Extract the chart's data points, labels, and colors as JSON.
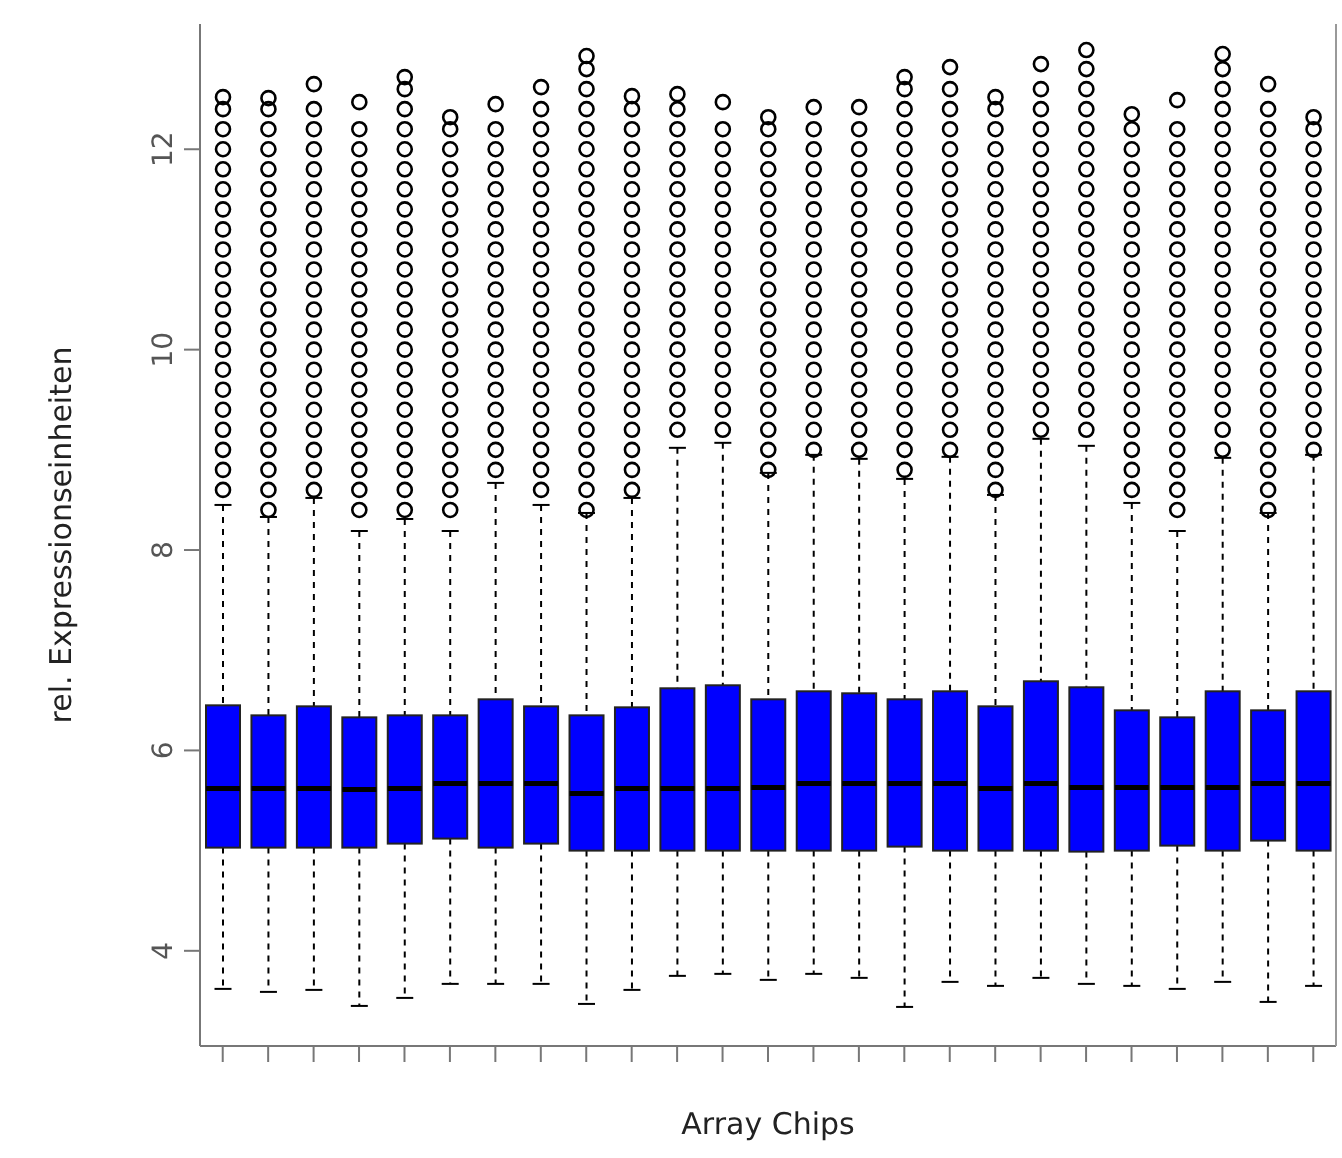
{
  "chart_data": {
    "type": "box",
    "xlabel": "Array Chips",
    "ylabel": "rel. Expressionseinheiten",
    "categories": [
      null,
      null,
      null,
      null,
      null,
      null,
      null,
      null,
      null,
      null,
      null,
      null,
      null,
      null,
      null,
      null,
      null,
      null,
      null,
      null,
      null,
      null,
      null,
      null,
      null
    ],
    "color": "#0000ff",
    "ylim": [
      3.05,
      13.25
    ],
    "yticks": [
      4,
      6,
      8,
      10,
      12
    ],
    "tick_labels": "y",
    "boxes": [
      {
        "low": 3.62,
        "q1": 5.03,
        "median": 5.62,
        "q3": 6.45,
        "high": 8.45,
        "outliers": [
          8.6,
          8.8,
          9,
          9.2,
          9.4,
          9.6,
          9.8,
          10,
          10.2,
          10.4,
          10.6,
          10.8,
          11,
          11.2,
          11.4,
          11.6,
          11.8,
          12,
          12.2,
          12.4,
          12.52
        ]
      },
      {
        "low": 3.59,
        "q1": 5.03,
        "median": 5.62,
        "q3": 6.35,
        "high": 8.33,
        "outliers": [
          8.4,
          8.6,
          8.8,
          9,
          9.2,
          9.4,
          9.6,
          9.8,
          10,
          10.2,
          10.4,
          10.6,
          10.8,
          11,
          11.2,
          11.4,
          11.6,
          11.8,
          12,
          12.2,
          12.4,
          12.51
        ]
      },
      {
        "low": 3.61,
        "q1": 5.03,
        "median": 5.62,
        "q3": 6.44,
        "high": 8.52,
        "outliers": [
          8.6,
          8.8,
          9,
          9.2,
          9.4,
          9.6,
          9.8,
          10,
          10.2,
          10.4,
          10.6,
          10.8,
          11,
          11.2,
          11.4,
          11.6,
          11.8,
          12,
          12.2,
          12.4,
          12.65
        ]
      },
      {
        "low": 3.45,
        "q1": 5.03,
        "median": 5.61,
        "q3": 6.33,
        "high": 8.19,
        "outliers": [
          8.4,
          8.6,
          8.8,
          9,
          9.2,
          9.4,
          9.6,
          9.8,
          10,
          10.2,
          10.4,
          10.6,
          10.8,
          11,
          11.2,
          11.4,
          11.6,
          11.8,
          12,
          12.2,
          12.47
        ]
      },
      {
        "low": 3.53,
        "q1": 5.07,
        "median": 5.62,
        "q3": 6.35,
        "high": 8.31,
        "outliers": [
          8.4,
          8.6,
          8.8,
          9,
          9.2,
          9.4,
          9.6,
          9.8,
          10,
          10.2,
          10.4,
          10.6,
          10.8,
          11,
          11.2,
          11.4,
          11.6,
          11.8,
          12,
          12.2,
          12.4,
          12.6,
          12.72
        ]
      },
      {
        "low": 3.67,
        "q1": 5.12,
        "median": 5.67,
        "q3": 6.35,
        "high": 8.19,
        "outliers": [
          8.4,
          8.6,
          8.8,
          9,
          9.2,
          9.4,
          9.6,
          9.8,
          10,
          10.2,
          10.4,
          10.6,
          10.8,
          11,
          11.2,
          11.4,
          11.6,
          11.8,
          12,
          12.2,
          12.32
        ]
      },
      {
        "low": 3.67,
        "q1": 5.03,
        "median": 5.67,
        "q3": 6.51,
        "high": 8.67,
        "outliers": [
          8.8,
          9,
          9.2,
          9.4,
          9.6,
          9.8,
          10,
          10.2,
          10.4,
          10.6,
          10.8,
          11,
          11.2,
          11.4,
          11.6,
          11.8,
          12,
          12.2,
          12.45
        ]
      },
      {
        "low": 3.67,
        "q1": 5.07,
        "median": 5.67,
        "q3": 6.44,
        "high": 8.45,
        "outliers": [
          8.6,
          8.8,
          9,
          9.2,
          9.4,
          9.6,
          9.8,
          10,
          10.2,
          10.4,
          10.6,
          10.8,
          11,
          11.2,
          11.4,
          11.6,
          11.8,
          12,
          12.2,
          12.4,
          12.62
        ]
      },
      {
        "low": 3.47,
        "q1": 5.0,
        "median": 5.57,
        "q3": 6.35,
        "high": 8.37,
        "outliers": [
          8.4,
          8.6,
          8.8,
          9,
          9.2,
          9.4,
          9.6,
          9.8,
          10,
          10.2,
          10.4,
          10.6,
          10.8,
          11,
          11.2,
          11.4,
          11.6,
          11.8,
          12,
          12.2,
          12.4,
          12.6,
          12.8,
          12.93
        ]
      },
      {
        "low": 3.61,
        "q1": 5.0,
        "median": 5.62,
        "q3": 6.43,
        "high": 8.52,
        "outliers": [
          8.6,
          8.8,
          9,
          9.2,
          9.4,
          9.6,
          9.8,
          10,
          10.2,
          10.4,
          10.6,
          10.8,
          11,
          11.2,
          11.4,
          11.6,
          11.8,
          12,
          12.2,
          12.4,
          12.53
        ]
      },
      {
        "low": 3.75,
        "q1": 5.0,
        "median": 5.62,
        "q3": 6.62,
        "high": 9.02,
        "outliers": [
          9.2,
          9.4,
          9.6,
          9.8,
          10,
          10.2,
          10.4,
          10.6,
          10.8,
          11,
          11.2,
          11.4,
          11.6,
          11.8,
          12,
          12.2,
          12.4,
          12.55
        ]
      },
      {
        "low": 3.77,
        "q1": 5.0,
        "median": 5.62,
        "q3": 6.65,
        "high": 9.07,
        "outliers": [
          9.2,
          9.4,
          9.6,
          9.8,
          10,
          10.2,
          10.4,
          10.6,
          10.8,
          11,
          11.2,
          11.4,
          11.6,
          11.8,
          12,
          12.2,
          12.47
        ]
      },
      {
        "low": 3.71,
        "q1": 5.0,
        "median": 5.63,
        "q3": 6.51,
        "high": 8.77,
        "outliers": [
          8.8,
          9,
          9.2,
          9.4,
          9.6,
          9.8,
          10,
          10.2,
          10.4,
          10.6,
          10.8,
          11,
          11.2,
          11.4,
          11.6,
          11.8,
          12,
          12.2,
          12.32
        ]
      },
      {
        "low": 3.77,
        "q1": 5.0,
        "median": 5.67,
        "q3": 6.59,
        "high": 8.95,
        "outliers": [
          9,
          9.2,
          9.4,
          9.6,
          9.8,
          10,
          10.2,
          10.4,
          10.6,
          10.8,
          11,
          11.2,
          11.4,
          11.6,
          11.8,
          12,
          12.2,
          12.42
        ]
      },
      {
        "low": 3.73,
        "q1": 5.0,
        "median": 5.67,
        "q3": 6.57,
        "high": 8.91,
        "outliers": [
          9,
          9.2,
          9.4,
          9.6,
          9.8,
          10,
          10.2,
          10.4,
          10.6,
          10.8,
          11,
          11.2,
          11.4,
          11.6,
          11.8,
          12,
          12.2,
          12.42
        ]
      },
      {
        "low": 3.44,
        "q1": 5.04,
        "median": 5.67,
        "q3": 6.51,
        "high": 8.71,
        "outliers": [
          8.8,
          9,
          9.2,
          9.4,
          9.6,
          9.8,
          10,
          10.2,
          10.4,
          10.6,
          10.8,
          11,
          11.2,
          11.4,
          11.6,
          11.8,
          12,
          12.2,
          12.4,
          12.6,
          12.72
        ]
      },
      {
        "low": 3.69,
        "q1": 5.0,
        "median": 5.67,
        "q3": 6.59,
        "high": 8.93,
        "outliers": [
          9,
          9.2,
          9.4,
          9.6,
          9.8,
          10,
          10.2,
          10.4,
          10.6,
          10.8,
          11,
          11.2,
          11.4,
          11.6,
          11.8,
          12,
          12.2,
          12.4,
          12.6,
          12.82
        ]
      },
      {
        "low": 3.65,
        "q1": 5.0,
        "median": 5.62,
        "q3": 6.44,
        "high": 8.55,
        "outliers": [
          8.6,
          8.8,
          9,
          9.2,
          9.4,
          9.6,
          9.8,
          10,
          10.2,
          10.4,
          10.6,
          10.8,
          11,
          11.2,
          11.4,
          11.6,
          11.8,
          12,
          12.2,
          12.4,
          12.52
        ]
      },
      {
        "low": 3.73,
        "q1": 5.0,
        "median": 5.67,
        "q3": 6.69,
        "high": 9.11,
        "outliers": [
          9.2,
          9.4,
          9.6,
          9.8,
          10,
          10.2,
          10.4,
          10.6,
          10.8,
          11,
          11.2,
          11.4,
          11.6,
          11.8,
          12,
          12.2,
          12.4,
          12.6,
          12.85
        ]
      },
      {
        "low": 3.67,
        "q1": 4.99,
        "median": 5.63,
        "q3": 6.63,
        "high": 9.04,
        "outliers": [
          9.2,
          9.4,
          9.6,
          9.8,
          10,
          10.2,
          10.4,
          10.6,
          10.8,
          11,
          11.2,
          11.4,
          11.6,
          11.8,
          12,
          12.2,
          12.4,
          12.6,
          12.8,
          12.99
        ]
      },
      {
        "low": 3.65,
        "q1": 5.0,
        "median": 5.63,
        "q3": 6.4,
        "high": 8.47,
        "outliers": [
          8.6,
          8.8,
          9,
          9.2,
          9.4,
          9.6,
          9.8,
          10,
          10.2,
          10.4,
          10.6,
          10.8,
          11,
          11.2,
          11.4,
          11.6,
          11.8,
          12,
          12.2,
          12.35
        ]
      },
      {
        "low": 3.62,
        "q1": 5.05,
        "median": 5.63,
        "q3": 6.33,
        "high": 8.19,
        "outliers": [
          8.4,
          8.6,
          8.8,
          9,
          9.2,
          9.4,
          9.6,
          9.8,
          10,
          10.2,
          10.4,
          10.6,
          10.8,
          11,
          11.2,
          11.4,
          11.6,
          11.8,
          12,
          12.2,
          12.49
        ]
      },
      {
        "low": 3.69,
        "q1": 5.0,
        "median": 5.63,
        "q3": 6.59,
        "high": 8.92,
        "outliers": [
          9,
          9.2,
          9.4,
          9.6,
          9.8,
          10,
          10.2,
          10.4,
          10.6,
          10.8,
          11,
          11.2,
          11.4,
          11.6,
          11.8,
          12,
          12.2,
          12.4,
          12.6,
          12.8,
          12.95
        ]
      },
      {
        "low": 3.49,
        "q1": 5.1,
        "median": 5.67,
        "q3": 6.4,
        "high": 8.37,
        "outliers": [
          8.4,
          8.6,
          8.8,
          9,
          9.2,
          9.4,
          9.6,
          9.8,
          10,
          10.2,
          10.4,
          10.6,
          10.8,
          11,
          11.2,
          11.4,
          11.6,
          11.8,
          12,
          12.2,
          12.4,
          12.65
        ]
      },
      {
        "low": 3.65,
        "q1": 5.0,
        "median": 5.67,
        "q3": 6.59,
        "high": 8.95,
        "outliers": [
          9,
          9.2,
          9.4,
          9.6,
          9.8,
          10,
          10.2,
          10.4,
          10.6,
          10.8,
          11,
          11.2,
          11.4,
          11.6,
          11.8,
          12,
          12.2,
          12.32
        ]
      }
    ]
  }
}
